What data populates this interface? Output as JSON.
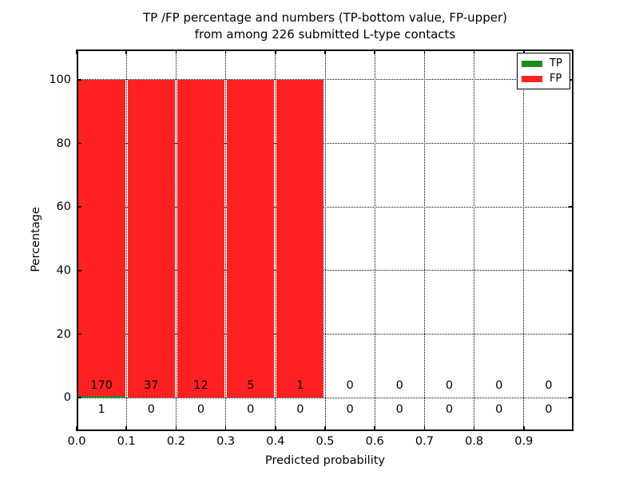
{
  "chart_data": {
    "type": "bar",
    "stacked": true,
    "title_line1": "TP /FP percentage and numbers (TP-bottom value, FP-upper)",
    "title_line2": "from among 226 submitted L-type contacts",
    "xlabel": "Predicted probability",
    "ylabel": "Percentage",
    "xlim": [
      0.0,
      1.0
    ],
    "ylim": [
      -10.5,
      109.5
    ],
    "xticks": [
      0.0,
      0.1,
      0.2,
      0.3,
      0.4,
      0.5,
      0.6,
      0.7,
      0.8,
      0.9
    ],
    "xtick_labels": [
      "0.0",
      "0.1",
      "0.2",
      "0.3",
      "0.4",
      "0.5",
      "0.6",
      "0.7",
      "0.8",
      "0.9"
    ],
    "yticks": [
      0,
      20,
      40,
      60,
      80,
      100
    ],
    "ytick_labels": [
      "0",
      "20",
      "40",
      "60",
      "80",
      "100"
    ],
    "grid": "dotted both axes",
    "bin_edges": [
      0.0,
      0.1,
      0.2,
      0.3,
      0.4,
      0.5,
      0.6,
      0.7,
      0.8,
      0.9,
      1.0
    ],
    "bin_centers": [
      0.05,
      0.15,
      0.25,
      0.35,
      0.45,
      0.55,
      0.65,
      0.75,
      0.85,
      0.95
    ],
    "series": [
      {
        "name": "TP",
        "color": "#1f8b1f",
        "counts": [
          1,
          0,
          0,
          0,
          0,
          0,
          0,
          0,
          0,
          0
        ],
        "percentages": [
          0.58,
          0,
          0,
          0,
          0,
          0,
          0,
          0,
          0,
          0
        ]
      },
      {
        "name": "FP",
        "color": "#ff2121",
        "counts": [
          170,
          37,
          12,
          5,
          1,
          0,
          0,
          0,
          0,
          0
        ],
        "percentages": [
          99.42,
          100,
          100,
          100,
          100,
          0,
          0,
          0,
          0,
          0
        ]
      }
    ],
    "annotation_rows": {
      "upper_fp_counts": [
        "170",
        "37",
        "12",
        "5",
        "1",
        "0",
        "0",
        "0",
        "0",
        "0"
      ],
      "lower_tp_counts": [
        "1",
        "0",
        "0",
        "0",
        "0",
        "0",
        "0",
        "0",
        "0",
        "0"
      ]
    },
    "legend": {
      "position": "upper right",
      "entries": [
        {
          "label": "TP",
          "color": "#1f8b1f"
        },
        {
          "label": "FP",
          "color": "#ff2121"
        }
      ]
    }
  }
}
